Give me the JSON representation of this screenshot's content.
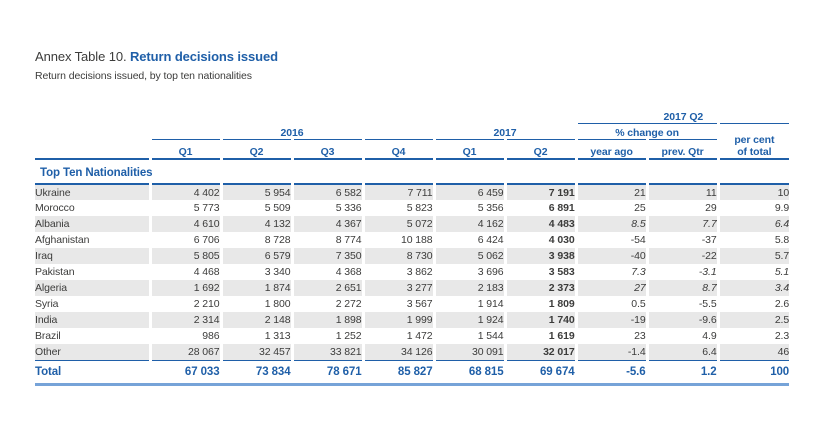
{
  "page": {
    "title_prefix": "Annex Table 10. ",
    "title": "Return decisions issued",
    "subtitle": "Return decisions issued, by top ten nationalities"
  },
  "table": {
    "group_headers": {
      "q2_2017": "2017 Q2",
      "y2016": "2016",
      "y2017": "2017",
      "pct_change": "% change on",
      "per_cent_of_total": "per cent\nof total"
    },
    "col_headers": [
      "Q1",
      "Q2",
      "Q3",
      "Q4",
      "Q1",
      "Q2",
      "year ago",
      "prev. Qtr"
    ],
    "section_label": "Top Ten Nationalities",
    "rows": [
      {
        "name": "Ukraine",
        "values": [
          "4 402",
          "5 954",
          "6 582",
          "7 711",
          "6 459",
          "7 191",
          "21",
          "11",
          "10"
        ],
        "shaded": true,
        "italic_change": false
      },
      {
        "name": "Morocco",
        "values": [
          "5 773",
          "5 509",
          "5 336",
          "5 823",
          "5 356",
          "6 891",
          "25",
          "29",
          "9.9"
        ],
        "shaded": false,
        "italic_change": false
      },
      {
        "name": "Albania",
        "values": [
          "4 610",
          "4 132",
          "4 367",
          "5 072",
          "4 162",
          "4 483",
          "8.5",
          "7.7",
          "6.4"
        ],
        "shaded": true,
        "italic_change": true
      },
      {
        "name": "Afghanistan",
        "values": [
          "6 706",
          "8 728",
          "8 774",
          "10 188",
          "6 424",
          "4 030",
          "-54",
          "-37",
          "5.8"
        ],
        "shaded": false,
        "italic_change": false
      },
      {
        "name": "Iraq",
        "values": [
          "5 805",
          "6 579",
          "7 350",
          "8 730",
          "5 062",
          "3 938",
          "-40",
          "-22",
          "5.7"
        ],
        "shaded": true,
        "italic_change": false
      },
      {
        "name": "Pakistan",
        "values": [
          "4 468",
          "3 340",
          "4 368",
          "3 862",
          "3 696",
          "3 583",
          "7.3",
          "-3.1",
          "5.1"
        ],
        "shaded": false,
        "italic_change": true
      },
      {
        "name": "Algeria",
        "values": [
          "1 692",
          "1 874",
          "2 651",
          "3 277",
          "2 183",
          "2 373",
          "27",
          "8.7",
          "3.4"
        ],
        "shaded": true,
        "italic_change": true
      },
      {
        "name": "Syria",
        "values": [
          "2 210",
          "1 800",
          "2 272",
          "3 567",
          "1 914",
          "1 809",
          "0.5",
          "-5.5",
          "2.6"
        ],
        "shaded": false,
        "italic_change": false
      },
      {
        "name": "India",
        "values": [
          "2 314",
          "2 148",
          "1 898",
          "1 999",
          "1 924",
          "1 740",
          "-19",
          "-9.6",
          "2.5"
        ],
        "shaded": true,
        "italic_change": false
      },
      {
        "name": "Brazil",
        "values": [
          "986",
          "1 313",
          "1 252",
          "1 472",
          "1 544",
          "1 619",
          "23",
          "4.9",
          "2.3"
        ],
        "shaded": false,
        "italic_change": false
      },
      {
        "name": "Other",
        "values": [
          "28 067",
          "32 457",
          "33 821",
          "34 126",
          "30 091",
          "32 017",
          "-1.4",
          "6.4",
          "46"
        ],
        "shaded": true,
        "italic_change": false
      }
    ],
    "total": {
      "name": "Total",
      "values": [
        "67 033",
        "73 834",
        "78 671",
        "85 827",
        "68 815",
        "69 674",
        "-5.6",
        "1.2",
        "100"
      ]
    }
  },
  "colors": {
    "accent_blue": "#1f5fa8",
    "stripe_gray": "#e8e8e8",
    "total_bottom_border": "#76a3d8",
    "body_text": "#3c3c3b"
  }
}
